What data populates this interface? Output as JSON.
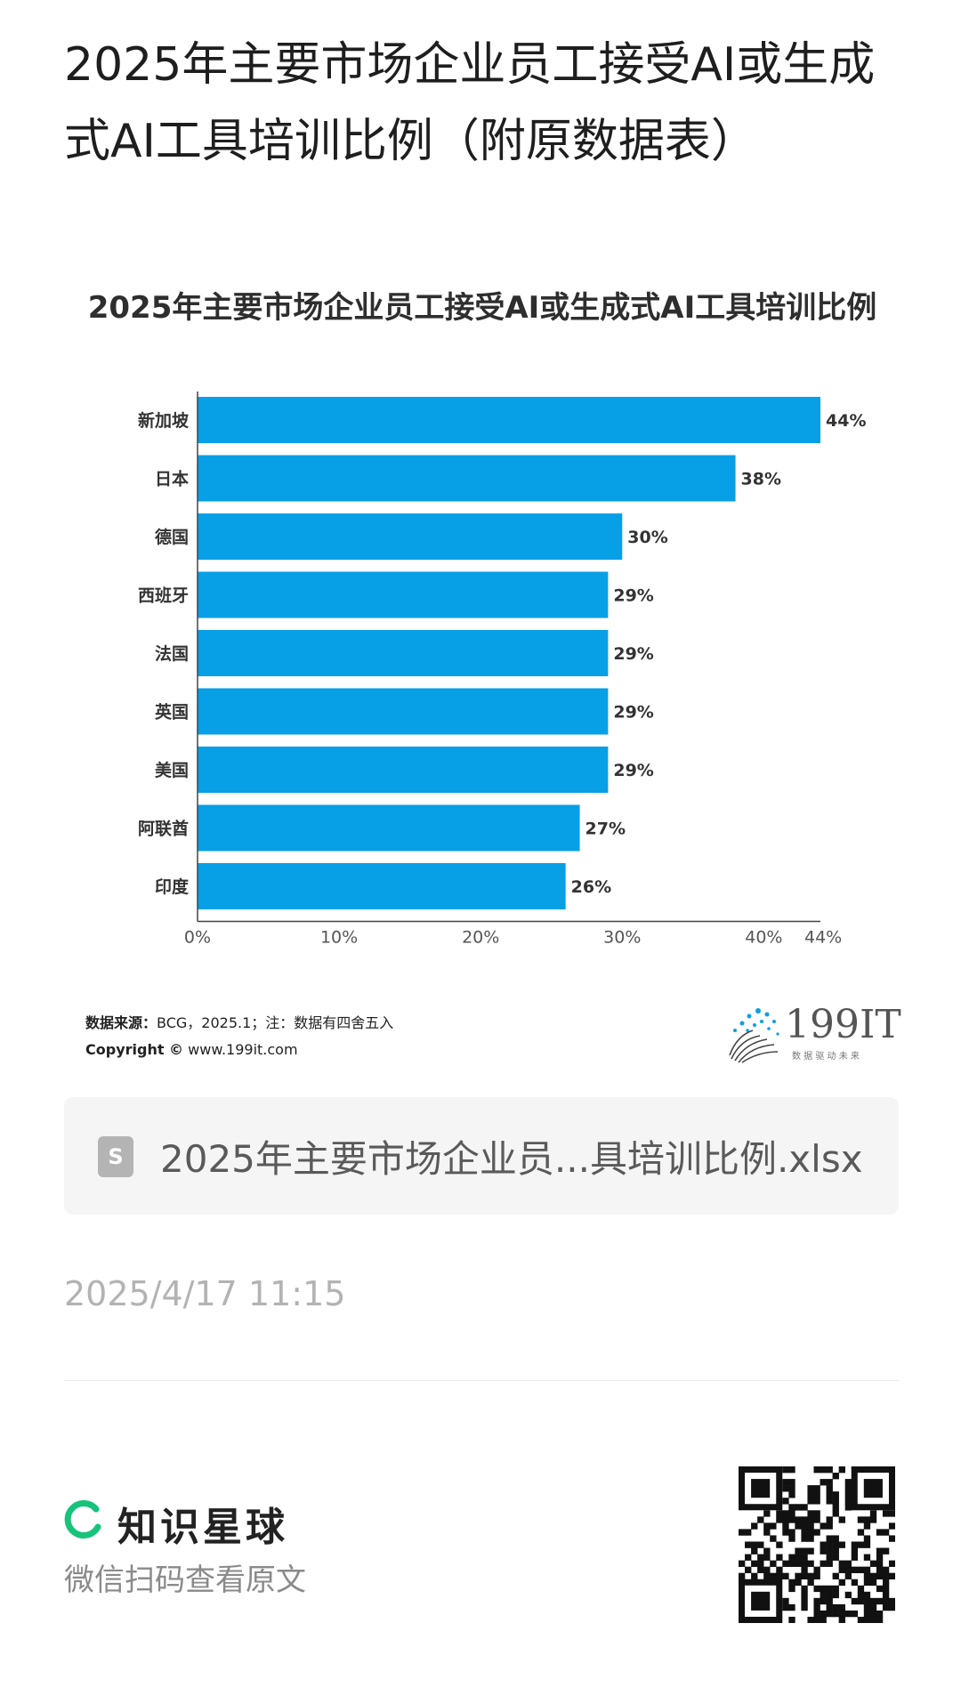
{
  "post": {
    "title": "2025年主要市场企业员工接受AI或生成式AI工具培训比例（附原数据表）"
  },
  "chart_data": {
    "type": "bar",
    "orientation": "horizontal",
    "title": "2025年主要市场企业员工接受AI或生成式AI工具培训比例",
    "categories": [
      "新加坡",
      "日本",
      "德国",
      "西班牙",
      "法国",
      "英国",
      "美国",
      "阿联酋",
      "印度"
    ],
    "values": [
      44,
      38,
      30,
      29,
      29,
      29,
      29,
      27,
      26
    ],
    "value_labels": [
      "44%",
      "38%",
      "30%",
      "29%",
      "29%",
      "29%",
      "29%",
      "27%",
      "26%"
    ],
    "x_ticks": [
      0,
      10,
      20,
      30,
      40,
      44
    ],
    "x_tick_labels": [
      "0%",
      "10%",
      "20%",
      "30%",
      "40%",
      "44%"
    ],
    "xlim": [
      0,
      44
    ],
    "bar_color": "#079fe6",
    "grid": false
  },
  "source": {
    "label": "数据来源：",
    "text": "BCG，2025.1；注：数据有四舍五入",
    "copyright_label": "Copyright ©",
    "copyright_url": "www.199it.com"
  },
  "logo": {
    "name": "199IT",
    "tagline": "数 据 驱 动 未 来",
    "icon": "dandelion-logo-icon"
  },
  "attachment": {
    "icon": "spreadsheet-file-icon",
    "icon_glyph": "S",
    "filename": "2025年主要市场企业员...具培训比例.xlsx"
  },
  "timestamp": "2025/4/17 11:15",
  "footer": {
    "brand_name": "知识星球",
    "brand_icon": "circle-c-icon",
    "brand_color": "#17c37b",
    "scan_text": "微信扫码查看原文",
    "qr_icon": "qr-code-icon"
  }
}
